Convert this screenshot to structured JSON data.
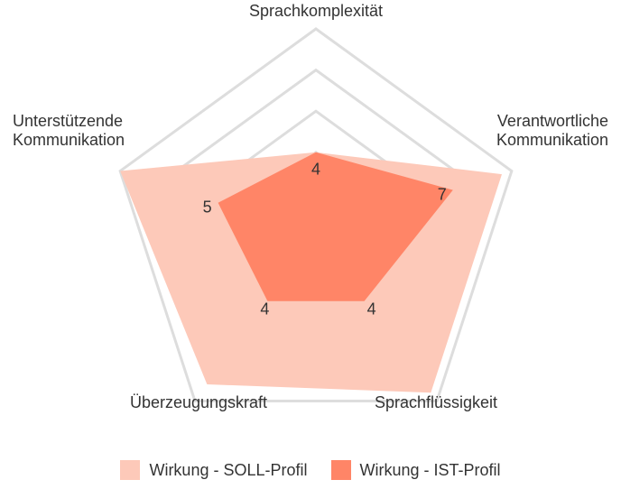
{
  "chart_data": {
    "type": "radar",
    "axes": [
      "Sprachkomplexität",
      "Verantwortliche Kommunikation",
      "Sprachflüssigkeit",
      "Überzeugungskraft",
      "Unterstützende Kommunikation"
    ],
    "axis_label_lines": [
      [
        "Sprachkomplexität"
      ],
      [
        "Verantwortliche",
        "Kommunikation"
      ],
      [
        "Sprachflüssigkeit"
      ],
      [
        "Überzeugungskraft"
      ],
      [
        "Unterstützende",
        "Kommunikation"
      ]
    ],
    "range": [
      0,
      10
    ],
    "grid_levels": [
      4,
      6,
      8,
      10
    ],
    "series": [
      {
        "name": "Wirkung - SOLL-Profil",
        "values": [
          4,
          9.5,
          9.5,
          9,
          10
        ],
        "color": "#fdc9b9"
      },
      {
        "name": "Wirkung - IST-Profil",
        "values": [
          4,
          7,
          4,
          4,
          5
        ],
        "color": "#ff8567"
      }
    ],
    "value_labels": [
      "4",
      "7",
      "4",
      "4",
      "5"
    ],
    "grid_color": "#dddddd"
  }
}
